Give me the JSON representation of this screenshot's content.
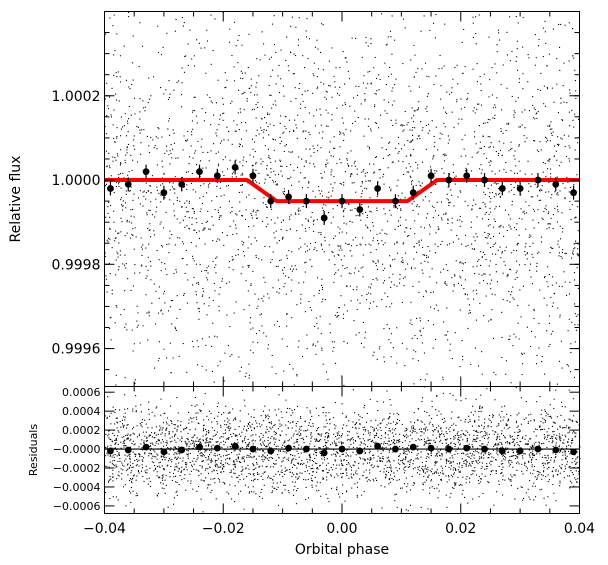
{
  "chart_data": [
    {
      "type": "scatter",
      "panel": "top",
      "xlabel": "",
      "ylabel": "Relative flux",
      "xlim": [
        -0.04,
        0.04
      ],
      "ylim": [
        0.99951,
        1.0004
      ],
      "yticks": [
        0.9996,
        0.9998,
        1.0,
        1.0002
      ],
      "ytick_labels": [
        "0.9996",
        "0.9998",
        "1.0000",
        "1.0002"
      ],
      "raw_scatter": {
        "x_range": [
          -0.04,
          0.04
        ],
        "y_mean": 0.99996,
        "y_scatter": 0.00023,
        "approx_points": 3200,
        "color": "#000000"
      },
      "binned": {
        "x": [
          -0.039,
          -0.036,
          -0.033,
          -0.03,
          -0.027,
          -0.024,
          -0.021,
          -0.018,
          -0.015,
          -0.012,
          -0.009,
          -0.006,
          -0.003,
          0.0,
          0.003,
          0.006,
          0.009,
          0.012,
          0.015,
          0.018,
          0.021,
          0.024,
          0.027,
          0.03,
          0.033,
          0.036,
          0.039
        ],
        "y": [
          0.99998,
          0.99999,
          1.00002,
          0.99997,
          0.99999,
          1.00002,
          1.00001,
          1.00003,
          1.00001,
          0.99995,
          0.99996,
          0.99995,
          0.99991,
          0.99995,
          0.99993,
          0.99998,
          0.99995,
          0.99997,
          1.00001,
          1.0,
          1.00001,
          1.0,
          0.99998,
          0.99998,
          1.0,
          0.99999,
          0.99997
        ],
        "color": "#000000"
      },
      "model": {
        "x": [
          -0.04,
          -0.016,
          -0.015,
          -0.013,
          -0.011,
          -0.01,
          0.0,
          0.01,
          0.011,
          0.013,
          0.015,
          0.016,
          0.04
        ],
        "y": [
          1.0,
          1.0,
          0.99999,
          0.99997,
          0.99995,
          0.99995,
          0.99995,
          0.99995,
          0.99995,
          0.99997,
          0.99999,
          1.0,
          1.0
        ],
        "color": "#ff0000"
      }
    },
    {
      "type": "scatter",
      "panel": "bottom",
      "xlabel": "Orbital phase",
      "ylabel": "Residuals",
      "xlim": [
        -0.04,
        0.04
      ],
      "ylim": [
        -0.00068,
        0.00066
      ],
      "xticks": [
        -0.04,
        -0.02,
        0.0,
        0.02,
        0.04
      ],
      "xtick_labels": [
        "−0.04",
        "−0.02",
        "0.00",
        "0.02",
        "0.04"
      ],
      "yticks": [
        -0.0006,
        -0.0004,
        -0.0002,
        0.0,
        0.0002,
        0.0004,
        0.0006
      ],
      "ytick_labels": [
        "−0.0006",
        "−0.0004",
        "−0.0002",
        "−0.0000",
        "0.0002",
        "0.0004",
        "0.0006"
      ],
      "raw_scatter": {
        "x_range": [
          -0.04,
          0.04
        ],
        "y_mean": 0.0,
        "y_scatter": 0.00023,
        "approx_points": 3200,
        "color": "#000000"
      },
      "binned": {
        "x": [
          -0.039,
          -0.036,
          -0.033,
          -0.03,
          -0.027,
          -0.024,
          -0.021,
          -0.018,
          -0.015,
          -0.012,
          -0.009,
          -0.006,
          -0.003,
          0.0,
          0.003,
          0.006,
          0.009,
          0.012,
          0.015,
          0.018,
          0.021,
          0.024,
          0.027,
          0.03,
          0.033,
          0.036,
          0.039
        ],
        "y": [
          -2e-05,
          -1e-05,
          2e-05,
          -3e-05,
          -1e-05,
          2e-05,
          1e-05,
          3e-05,
          0.0,
          -2e-05,
          1e-05,
          0.0,
          -4e-05,
          0.0,
          -2e-05,
          3e-05,
          0.0,
          2e-05,
          1e-05,
          0.0,
          1e-05,
          0.0,
          -2e-05,
          -2e-05,
          0.0,
          -1e-05,
          -3e-05
        ],
        "color": "#000000"
      },
      "zero_line": {
        "y": 0.0,
        "color": "#000000"
      }
    }
  ]
}
